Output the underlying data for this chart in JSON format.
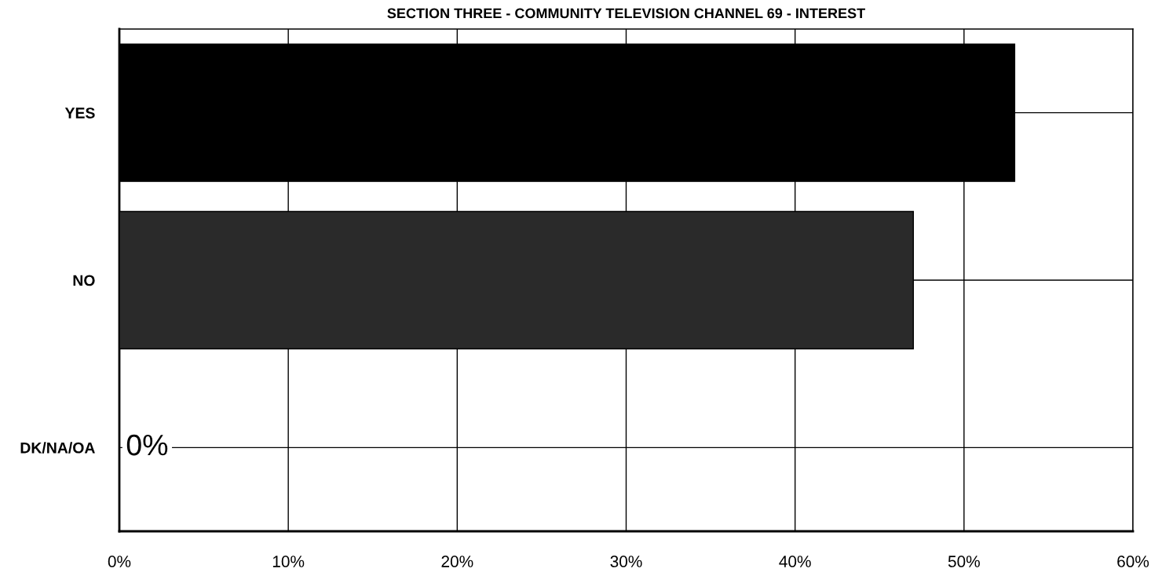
{
  "chart_data": {
    "type": "bar",
    "orientation": "horizontal",
    "title": "SECTION THREE - COMMUNITY TELEVISION CHANNEL 69 - INTEREST",
    "categories": [
      "YES",
      "NO",
      "DK/NA/OA"
    ],
    "values": [
      53,
      47,
      0
    ],
    "colors": [
      "#000000",
      "#2a2a2a",
      "#000000"
    ],
    "value_labels": [
      null,
      null,
      "0%"
    ],
    "xlim": [
      0,
      60
    ],
    "xticks": [
      {
        "value": 0,
        "label": "0%"
      },
      {
        "value": 10,
        "label": "10%"
      },
      {
        "value": 20,
        "label": "20%"
      },
      {
        "value": 30,
        "label": "30%"
      },
      {
        "value": 40,
        "label": "40%"
      },
      {
        "value": 50,
        "label": "50%"
      },
      {
        "value": 60,
        "label": "60%"
      }
    ],
    "grid": true
  }
}
